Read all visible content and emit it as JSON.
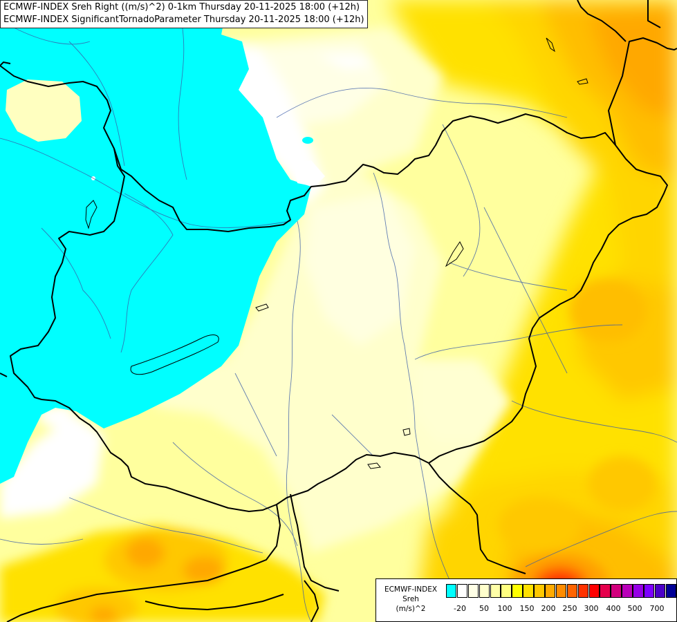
{
  "header": {
    "line1": "ECMWF-INDEX Sreh Right ((m/s)^2) 0-1km Thursday 20-11-2025 18:00 (+12h)",
    "line2": "ECMWF-INDEX SignificantTornadoParameter Thursday 20-11-2025 18:00 (+12h)"
  },
  "legend": {
    "title_line1": "ECMWF-INDEX",
    "title_line2": "Sreh",
    "title_line3": "(m/s)^2",
    "colors": [
      "#00ffff",
      "#ffffff",
      "#ffffe6",
      "#ffffcc",
      "#ffffa8",
      "#ffff80",
      "#ffff00",
      "#ffe100",
      "#ffc800",
      "#ffaa00",
      "#ff8c00",
      "#ff6400",
      "#ff3200",
      "#ff0000",
      "#e6004c",
      "#d2007d",
      "#b900b9",
      "#9600e6",
      "#7d00ff",
      "#4b00c8",
      "#000096"
    ],
    "tick_labels": [
      "-20",
      "50",
      "100",
      "150",
      "200",
      "250",
      "300",
      "400",
      "500",
      "700"
    ]
  },
  "map": {
    "colors": {
      "cyan": "#00ffff",
      "white": "#ffffff",
      "pale": "#ffffcc",
      "lightyellow": "#ffff9e",
      "yellow": "#ffff00",
      "gold": "#ffd500",
      "orange": "#ffa800",
      "darkorange": "#ff8c00",
      "red": "#ff0000",
      "border": "#000000",
      "river": "#3a5ca8"
    }
  }
}
